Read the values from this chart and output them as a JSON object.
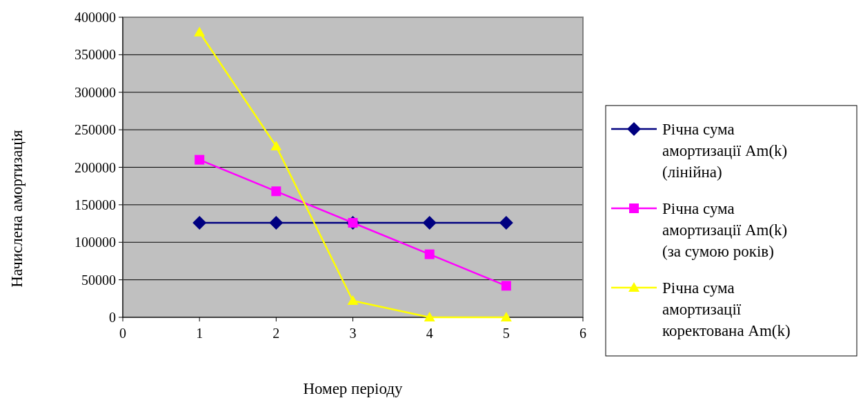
{
  "chart_data": {
    "type": "line",
    "xlabel": "Номер періоду",
    "ylabel": "Начислена амортизація",
    "x": [
      1,
      2,
      3,
      4,
      5
    ],
    "series": [
      {
        "name": "Річна сума амортизації Am(k) (лінійна)",
        "color": "#000080",
        "marker": "diamond",
        "values": [
          126000,
          126000,
          126000,
          126000,
          126000
        ]
      },
      {
        "name": "Річна сума амортизації Am(k) (за сумою років)",
        "color": "#ff00ff",
        "marker": "square",
        "values": [
          210000,
          168000,
          126000,
          84000,
          42000
        ]
      },
      {
        "name": "Річна сума амортизації коректована Am(k)",
        "color": "#ffff00",
        "marker": "triangle",
        "values": [
          380000,
          228000,
          22000,
          0,
          0
        ]
      }
    ],
    "xlim": [
      0,
      6
    ],
    "xticks": [
      0,
      1,
      2,
      3,
      4,
      5,
      6
    ],
    "ylim": [
      0,
      400000
    ],
    "yticks": [
      0,
      50000,
      100000,
      150000,
      200000,
      250000,
      300000,
      350000,
      400000
    ],
    "grid": "y",
    "legend": "right"
  }
}
